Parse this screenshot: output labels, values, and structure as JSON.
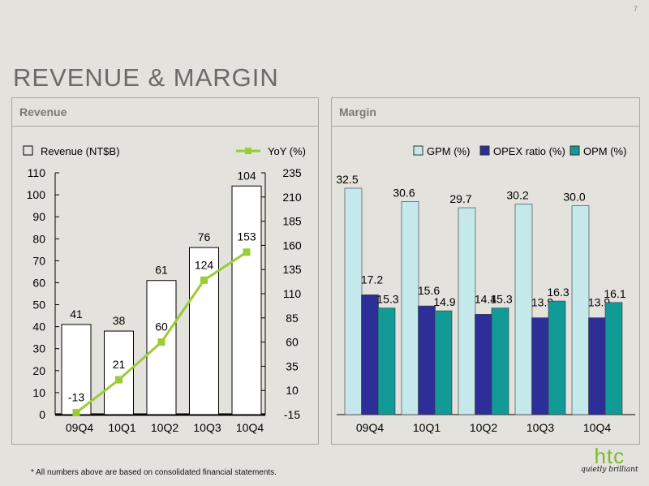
{
  "page_number": "7",
  "title": "REVENUE & MARGIN",
  "footnote": "*  All numbers above are based on consolidated financial statements.",
  "logo": {
    "text": "htc",
    "tagline": "quietly brilliant"
  },
  "chart_data": [
    {
      "panel_title": "Revenue",
      "type": "bar+line",
      "categories": [
        "09Q4",
        "10Q1",
        "10Q2",
        "10Q3",
        "10Q4"
      ],
      "series": [
        {
          "name": "Revenue (NT$B)",
          "type": "bar",
          "axis": "left",
          "values": [
            41,
            38,
            61,
            76,
            104
          ],
          "color": "#ffffff"
        },
        {
          "name": "YoY (%)",
          "type": "line",
          "axis": "right",
          "values": [
            -13,
            21,
            60,
            124,
            153
          ],
          "color": "#9acd32"
        }
      ],
      "y_left": {
        "range": [
          0,
          110
        ],
        "ticks": [
          0,
          10,
          20,
          30,
          40,
          50,
          60,
          70,
          80,
          90,
          100,
          110
        ]
      },
      "y_right": {
        "range": [
          -15,
          235
        ],
        "ticks": [
          -15,
          10,
          35,
          60,
          85,
          110,
          135,
          160,
          185,
          210,
          235
        ]
      },
      "legend": "top",
      "grid": false
    },
    {
      "panel_title": "Margin",
      "type": "bar",
      "categories": [
        "09Q4",
        "10Q1",
        "10Q2",
        "10Q3",
        "10Q4"
      ],
      "series": [
        {
          "name": "GPM (%)",
          "values": [
            32.5,
            30.6,
            29.7,
            30.2,
            30.0
          ],
          "color": "#c5e8ea",
          "labels": [
            "32.5",
            "30.6",
            "29.7",
            "30.2",
            "30.0"
          ]
        },
        {
          "name": "OPEX ratio (%)",
          "values": [
            17.2,
            15.6,
            14.4,
            13.9,
            13.9
          ],
          "color": "#2e2e99",
          "labels": [
            "17.2",
            "15.6",
            "14.4",
            "13.9",
            "13.9"
          ]
        },
        {
          "name": "OPM (%)",
          "values": [
            15.3,
            14.9,
            15.3,
            16.3,
            16.1
          ],
          "color": "#129a96",
          "labels": [
            "15.3",
            "14.9",
            "15.3",
            "16.3",
            "16.1"
          ]
        }
      ],
      "legend": "top-right",
      "grid": false
    }
  ]
}
